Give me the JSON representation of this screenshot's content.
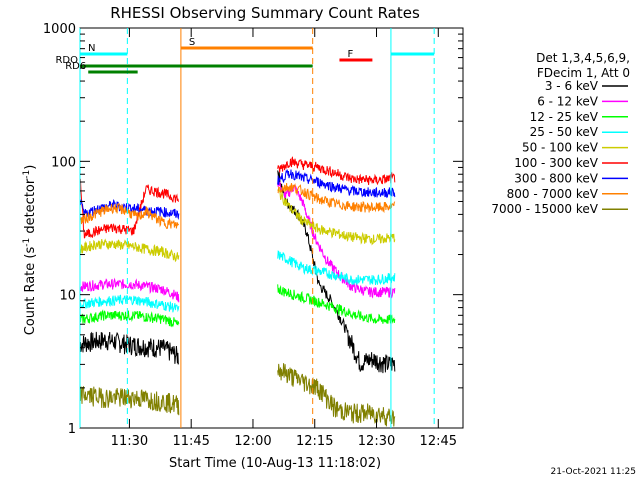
{
  "chart_data": {
    "type": "line",
    "title": "RHESSI Observing Summary Count Rates",
    "xlabel": "Start Time (10-Aug-13 11:18:02)",
    "ylabel_main": "Count Rate (s",
    "ylabel_sup1": "-1",
    "ylabel_mid": " detector",
    "ylabel_sup2": "-1",
    "ylabel_end": ")",
    "yscale": "log",
    "ylim": [
      1,
      1000
    ],
    "xlim_minutes": [
      0,
      93
    ],
    "x_ticks": [
      {
        "m": 12,
        "label": "11:30"
      },
      {
        "m": 27,
        "label": "11:45"
      },
      {
        "m": 42,
        "label": "12:00"
      },
      {
        "m": 57,
        "label": "12:15"
      },
      {
        "m": 72,
        "label": "12:30"
      },
      {
        "m": 87,
        "label": "12:45"
      }
    ],
    "y_ticks": [
      {
        "v": 1,
        "label": "1"
      },
      {
        "v": 10,
        "label": "10"
      },
      {
        "v": 100,
        "label": "100"
      },
      {
        "v": 1000,
        "label": "1000"
      }
    ],
    "legend_header": [
      "Det 1,3,4,5,6,9,",
      "FDecim 1, Att 0"
    ],
    "series": [
      {
        "name": "3 - 6 keV",
        "color": "#000000",
        "values": [
          [
            0,
            4.3
          ],
          [
            6,
            4.6
          ],
          [
            13,
            4.2
          ],
          [
            20,
            4.0
          ],
          [
            23,
            3.6
          ],
          [
            24,
            3.4
          ],
          [
            48,
            85
          ],
          [
            50,
            50
          ],
          [
            53,
            40
          ],
          [
            55,
            30
          ],
          [
            58,
            12
          ],
          [
            61,
            9
          ],
          [
            64,
            6
          ],
          [
            66,
            4.3
          ],
          [
            68,
            3.1
          ],
          [
            71,
            3.3
          ],
          [
            75,
            3.0
          ],
          [
            76.5,
            3.1
          ]
        ]
      },
      {
        "name": "6 - 12 keV",
        "color": "#ff00ff",
        "values": [
          [
            0,
            11.5
          ],
          [
            6,
            12.0
          ],
          [
            13,
            12.0
          ],
          [
            20,
            11.0
          ],
          [
            23,
            10.0
          ],
          [
            24,
            9.5
          ],
          [
            48,
            70
          ],
          [
            50,
            55
          ],
          [
            52,
            65
          ],
          [
            54,
            50
          ],
          [
            57,
            27
          ],
          [
            60,
            18
          ],
          [
            63,
            14
          ],
          [
            66,
            11.5
          ],
          [
            70,
            10.5
          ],
          [
            76.5,
            10.5
          ]
        ]
      },
      {
        "name": "12 - 25 keV",
        "color": "#00ff00",
        "values": [
          [
            0,
            6.5
          ],
          [
            6,
            7.0
          ],
          [
            13,
            7.0
          ],
          [
            20,
            6.6
          ],
          [
            23,
            6.2
          ],
          [
            24,
            5.8
          ],
          [
            48,
            11
          ],
          [
            52,
            10
          ],
          [
            57,
            9
          ],
          [
            62,
            8
          ],
          [
            67,
            7
          ],
          [
            72,
            6.5
          ],
          [
            76.5,
            6.5
          ]
        ]
      },
      {
        "name": "25 - 50 keV",
        "color": "#00ffff",
        "values": [
          [
            0,
            8.5
          ],
          [
            6,
            9.0
          ],
          [
            13,
            9.2
          ],
          [
            20,
            8.4
          ],
          [
            23,
            8.0
          ],
          [
            24,
            7.6
          ],
          [
            48,
            20
          ],
          [
            51,
            18
          ],
          [
            54,
            16
          ],
          [
            58,
            15
          ],
          [
            62,
            14
          ],
          [
            66,
            13
          ],
          [
            72,
            13
          ],
          [
            76.5,
            13.5
          ]
        ]
      },
      {
        "name": "50 - 100 keV",
        "color": "#cccc00",
        "values": [
          [
            0,
            22
          ],
          [
            4,
            24
          ],
          [
            8,
            24
          ],
          [
            13,
            23
          ],
          [
            16,
            22
          ],
          [
            20,
            21
          ],
          [
            24,
            19
          ],
          [
            48,
            60
          ],
          [
            51,
            45
          ],
          [
            54,
            36
          ],
          [
            58,
            31
          ],
          [
            62,
            29
          ],
          [
            66,
            27
          ],
          [
            72,
            26
          ],
          [
            76.5,
            27
          ]
        ]
      },
      {
        "name": "100 - 300 keV",
        "color": "#ff0000",
        "values": [
          [
            0,
            75
          ],
          [
            1,
            28
          ],
          [
            4,
            30
          ],
          [
            8,
            32
          ],
          [
            13,
            30
          ],
          [
            16,
            62
          ],
          [
            20,
            58
          ],
          [
            24,
            52
          ],
          [
            48,
            85
          ],
          [
            51,
            100
          ],
          [
            54,
            95
          ],
          [
            58,
            90
          ],
          [
            62,
            82
          ],
          [
            66,
            74
          ],
          [
            72,
            72
          ],
          [
            76.5,
            75
          ]
        ]
      },
      {
        "name": "300 - 800 keV",
        "color": "#0000ff",
        "values": [
          [
            0,
            50
          ],
          [
            1,
            40
          ],
          [
            4,
            44
          ],
          [
            8,
            47
          ],
          [
            12,
            45
          ],
          [
            16,
            43
          ],
          [
            20,
            42
          ],
          [
            24,
            40
          ],
          [
            48,
            72
          ],
          [
            51,
            82
          ],
          [
            54,
            75
          ],
          [
            58,
            70
          ],
          [
            62,
            64
          ],
          [
            66,
            60
          ],
          [
            72,
            58
          ],
          [
            76.5,
            59
          ]
        ]
      },
      {
        "name": "800 - 7000 keV",
        "color": "#ff8000",
        "values": [
          [
            0,
            36
          ],
          [
            2,
            38
          ],
          [
            5,
            42
          ],
          [
            8,
            45
          ],
          [
            11,
            43
          ],
          [
            14,
            38
          ],
          [
            16,
            42
          ],
          [
            20,
            35
          ],
          [
            24,
            33
          ],
          [
            48,
            62
          ],
          [
            51,
            65
          ],
          [
            54,
            60
          ],
          [
            58,
            52
          ],
          [
            62,
            48
          ],
          [
            66,
            46
          ],
          [
            72,
            45
          ],
          [
            76.5,
            46
          ]
        ]
      },
      {
        "name": "7000 - 15000 keV",
        "color": "#808000",
        "values": [
          [
            0,
            1.8
          ],
          [
            6,
            1.7
          ],
          [
            13,
            1.7
          ],
          [
            20,
            1.6
          ],
          [
            24,
            1.5
          ],
          [
            48,
            2.8
          ],
          [
            52,
            2.4
          ],
          [
            58,
            2.0
          ],
          [
            62,
            1.4
          ],
          [
            66,
            1.3
          ],
          [
            72,
            1.3
          ],
          [
            76.5,
            1.2
          ]
        ]
      }
    ],
    "bands": [
      {
        "label": "N",
        "color": "#00ffff",
        "m1": 0.0,
        "m2": 11.5,
        "level": 0.93,
        "dashed": true
      },
      {
        "label": "",
        "color": "#00ffff",
        "m1": 75.5,
        "m2": 86,
        "level": 0.93,
        "dashed": true
      },
      {
        "label": "S",
        "color": "#ff8000",
        "m1": 24.5,
        "m2": 56.5,
        "level": 0.96,
        "dashed": true
      },
      {
        "label": "F",
        "color": "#ff0000",
        "m1": 63,
        "m2": 71,
        "level": 0.9,
        "dashed": false
      },
      {
        "label": "RDO",
        "color": "#008000",
        "m1": 0,
        "m2": 56.5,
        "level": 0.87,
        "dashed": false
      },
      {
        "label": "RD6",
        "color": "#008000",
        "m1": 2,
        "m2": 14,
        "level": 0.84,
        "dashed": false
      }
    ],
    "timestamp": "21-Oct-2021 11:25"
  }
}
